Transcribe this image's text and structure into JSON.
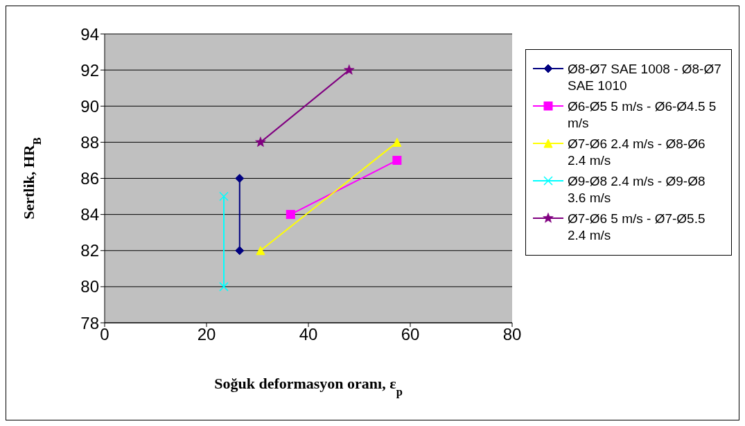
{
  "chart_data": {
    "type": "line",
    "xlabel": "Soğuk deformasyon oranı, ε$_{p}$",
    "ylabel": "Sertlik, HR$_{B}$",
    "xlim": [
      0,
      80
    ],
    "xticks": [
      0,
      20,
      40,
      60,
      80
    ],
    "ylim": [
      78,
      94
    ],
    "yticks": [
      78,
      80,
      82,
      84,
      86,
      88,
      90,
      92,
      94
    ],
    "grid": "y",
    "legend": "right",
    "line_style": "solid",
    "series": [
      {
        "name": "Ø8-Ø7 SAE 1008 - Ø8-Ø7 SAE 1010",
        "color": "#000080",
        "marker": "diamond",
        "x": [
          26.5,
          26.5
        ],
        "values": [
          86,
          82
        ]
      },
      {
        "name": "Ø6-Ø5 5 m/s - Ø6-Ø4.5 5 m/s",
        "color": "#ff00ff",
        "marker": "square",
        "x": [
          36.5,
          57.4
        ],
        "values": [
          84,
          87
        ]
      },
      {
        "name": "Ø7-Ø6 2.4 m/s - Ø8-Ø6 2.4 m/s",
        "color": "#ffff00",
        "marker": "triangle",
        "x": [
          30.6,
          57.4
        ],
        "values": [
          82,
          88
        ]
      },
      {
        "name": "Ø9-Ø8 2.4 m/s - Ø9-Ø8 3.6 m/s",
        "color": "#00ffff",
        "marker": "cross",
        "x": [
          23.4,
          23.4
        ],
        "values": [
          85,
          80
        ]
      },
      {
        "name": "Ø7-Ø6 5 m/s - Ø7-Ø5.5 2.4 m/s",
        "color": "#800080",
        "marker": "star",
        "x": [
          30.6,
          48.0
        ],
        "values": [
          88,
          92
        ]
      }
    ]
  }
}
